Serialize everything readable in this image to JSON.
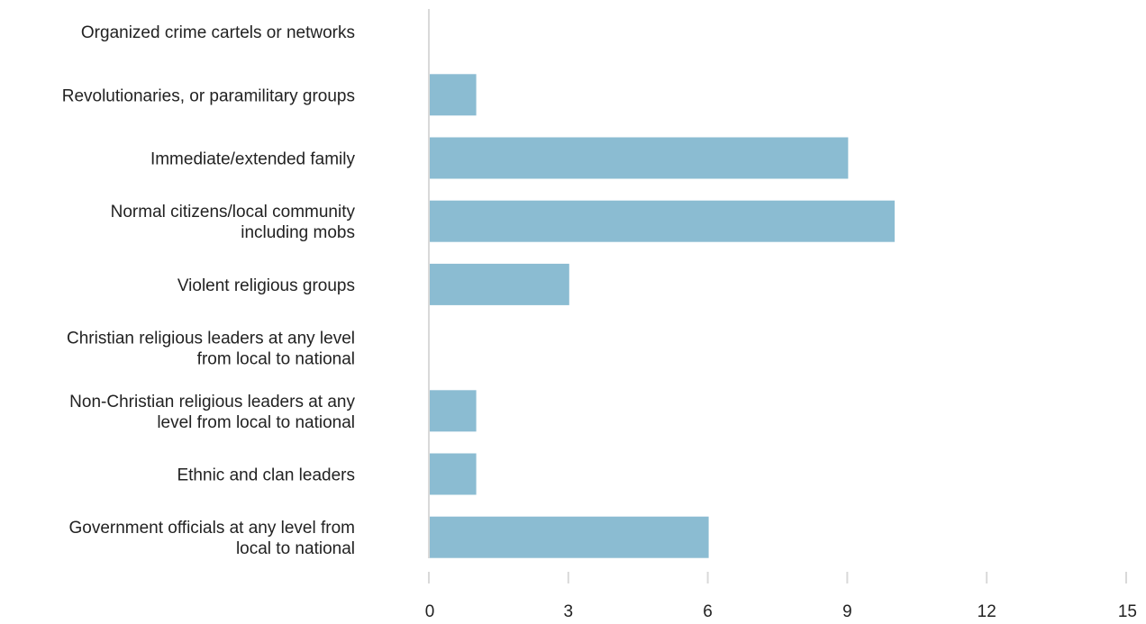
{
  "chart_data": {
    "type": "bar",
    "orientation": "horizontal",
    "categories": [
      [
        "Organized crime cartels or networks"
      ],
      [
        "Revolutionaries, or paramilitary groups"
      ],
      [
        "Immediate/extended family"
      ],
      [
        "Normal citizens/local community",
        "including mobs"
      ],
      [
        "Violent religious groups"
      ],
      [
        "Christian religious leaders at any level",
        "from local to national"
      ],
      [
        "Non-Christian religious leaders at any",
        "level from local to national"
      ],
      [
        "Ethnic and clan leaders"
      ],
      [
        "Government officials at any level from",
        "local to national"
      ]
    ],
    "values": [
      0,
      1,
      9,
      10,
      3,
      0,
      1,
      1,
      6
    ],
    "xlim": [
      0,
      15
    ],
    "xticks": [
      0,
      3,
      6,
      9,
      12,
      15
    ],
    "title": "",
    "xlabel": "",
    "ylabel": "",
    "grid": false,
    "legend": "none",
    "colors": {
      "bar": "#8bbcd2",
      "axis": "#d9d9d9",
      "text": "#222222"
    }
  }
}
